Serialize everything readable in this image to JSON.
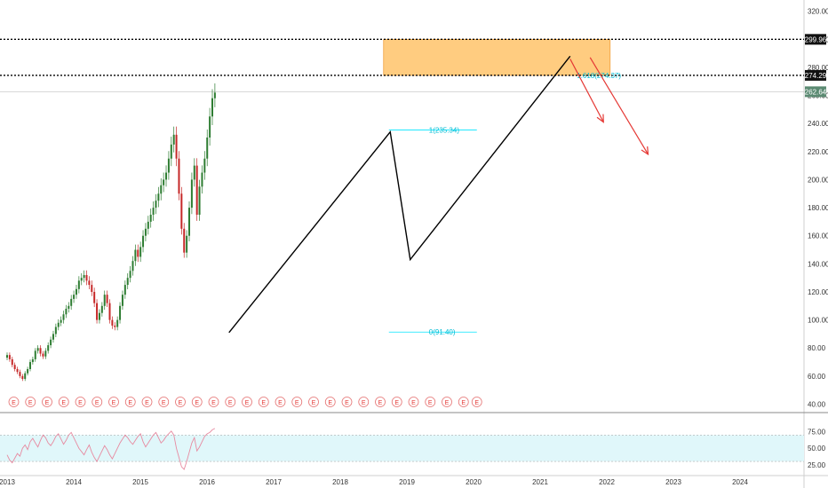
{
  "chart_data": {
    "type": "candlestick",
    "x_ticks": [
      "2013",
      "2014",
      "2015",
      "2016",
      "2017",
      "2018",
      "2019",
      "2020",
      "2021",
      "2022",
      "2023",
      "2024"
    ],
    "price_axis": {
      "ticks": [
        "320.00",
        "300.00",
        "280.00",
        "260.00",
        "240.00",
        "220.00",
        "200.00",
        "180.00",
        "160.00",
        "140.00",
        "120.00",
        "100.00",
        "80.00",
        "60.00",
        "40.00"
      ],
      "ylim": [
        34,
        328
      ]
    },
    "rsi_axis": {
      "ticks": [
        "75.00",
        "50.00",
        "25.00"
      ],
      "ylim": [
        10,
        100
      ],
      "band": [
        30,
        70
      ]
    },
    "last_price": {
      "label": "262.64",
      "value": 262.64,
      "color": "#5b8a72"
    },
    "levels": [
      {
        "label": "299.96",
        "value": 299.96
      },
      {
        "label": "274.29",
        "value": 274.29
      }
    ],
    "target_zone": {
      "from_year": 2018.65,
      "to_year": 2022.05,
      "low": 274.29,
      "high": 299.96,
      "color": "#ffcc80"
    },
    "fib_levels": [
      {
        "label": "1(235.34)",
        "value": 235.34,
        "from_year": 2018.73,
        "to_year": 2020.05
      },
      {
        "label": "0(91.40)",
        "value": 91.4,
        "from_year": 2018.73,
        "to_year": 2020.05
      },
      {
        "label": "1.618(274.37)",
        "value": 274.37,
        "from_year": 2021.6,
        "to_year": 2021.6
      }
    ],
    "pattern_lines": [
      {
        "points": [
          [
            2016.33,
            91
          ],
          [
            2018.75,
            234
          ],
          [
            2019.05,
            143
          ],
          [
            2021.45,
            288
          ]
        ],
        "color": "#000000"
      }
    ],
    "projection_arrows": [
      {
        "from": [
          2021.45,
          286
        ],
        "to": [
          2021.95,
          241
        ],
        "color": "#e53935"
      },
      {
        "from": [
          2021.75,
          287
        ],
        "to": [
          2022.62,
          218
        ],
        "color": "#e53935"
      }
    ],
    "earnings_markers": {
      "label": "E",
      "years": [
        2013.1,
        2013.35,
        2013.6,
        2013.85,
        2014.1,
        2014.35,
        2014.6,
        2014.85,
        2015.1,
        2015.35,
        2015.6,
        2015.85,
        2016.1,
        2016.35,
        2016.6,
        2016.85,
        2017.1,
        2017.35,
        2017.6,
        2017.85,
        2018.1,
        2018.35,
        2018.6,
        2018.85,
        2019.1,
        2019.35,
        2019.6,
        2019.85,
        2020.05
      ]
    },
    "price_series": {
      "start_year": 2013.0,
      "step_years": 0.0385,
      "up_color": "#2e7d32",
      "down_color": "#c62828",
      "close": [
        75,
        72,
        68,
        65,
        63,
        60,
        58,
        62,
        65,
        70,
        72,
        78,
        80,
        76,
        74,
        78,
        82,
        86,
        90,
        95,
        98,
        100,
        104,
        108,
        110,
        115,
        118,
        122,
        128,
        130,
        132,
        128,
        125,
        120,
        112,
        100,
        105,
        110,
        118,
        112,
        100,
        96,
        95,
        100,
        110,
        118,
        125,
        130,
        135,
        142,
        150,
        145,
        152,
        160,
        165,
        170,
        175,
        180,
        185,
        190,
        196,
        200,
        205,
        215,
        225,
        232,
        215,
        190,
        165,
        148,
        160,
        180,
        200,
        210,
        175,
        195,
        205,
        215,
        230,
        245,
        258,
        262
      ],
      "opens_offset_pct": 2.5
    },
    "rsi_series": {
      "color": "#e78aa0",
      "values": [
        40,
        32,
        28,
        35,
        42,
        38,
        50,
        55,
        48,
        60,
        65,
        58,
        52,
        62,
        70,
        66,
        58,
        54,
        60,
        68,
        72,
        64,
        56,
        62,
        70,
        74,
        66,
        58,
        50,
        45,
        40,
        48,
        55,
        44,
        36,
        30,
        38,
        46,
        54,
        48,
        40,
        34,
        42,
        50,
        58,
        64,
        70,
        66,
        60,
        56,
        62,
        68,
        72,
        60,
        52,
        58,
        64,
        70,
        74,
        66,
        58,
        62,
        68,
        72,
        76,
        70,
        50,
        36,
        22,
        18,
        30,
        44,
        58,
        66,
        46,
        52,
        60,
        68,
        72,
        74,
        78,
        80
      ]
    }
  }
}
